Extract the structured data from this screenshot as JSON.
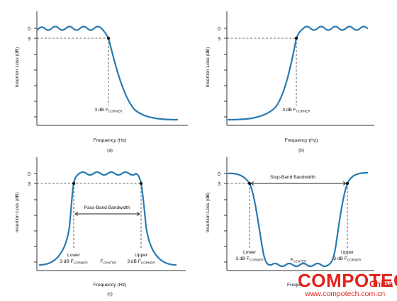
{
  "accent_color": "#2a7ab0",
  "panels": [
    {
      "id": "a",
      "y_axis_label": "Insertion Loss (dB)",
      "y_tick_labels": [
        "0",
        "3"
      ],
      "x_axis_label": "Frequency (Hz)",
      "caption": "(a)",
      "annotations": [
        {
          "prefix": "3 dB F",
          "sub": "CORNER"
        }
      ]
    },
    {
      "id": "b",
      "y_axis_label": "Insertion Loss (dB)",
      "y_tick_labels": [
        "0",
        "3"
      ],
      "x_axis_label": "Frequency (Hz)",
      "caption": "(b)",
      "annotations": [
        {
          "prefix": "3 dB F",
          "sub": "CORNER"
        }
      ]
    },
    {
      "id": "c",
      "y_axis_label": "Insertion Loss (dB)",
      "y_tick_labels": [
        "0",
        "3"
      ],
      "x_axis_label": "Frequency (Hz)",
      "caption": "(c)",
      "bandwidth_label": "Pass-Band Bandwidth",
      "annotations": [
        {
          "line1": "Lower",
          "prefix": "3 dB F",
          "sub": "CORNER"
        },
        {
          "prefix": "F",
          "sub": "CENTER"
        },
        {
          "line1": "Upper",
          "prefix": "3 dB F",
          "sub": "CORNER"
        }
      ]
    },
    {
      "id": "d",
      "y_axis_label": "Insertion Loss (dB)",
      "y_tick_labels": [
        "0",
        "3"
      ],
      "x_axis_label": "Freque",
      "bandwidth_label": "Stop-Band Bandwidth",
      "annotations": [
        {
          "line1": "Lower",
          "prefix": "3 dB F",
          "sub": "CORNER"
        },
        {
          "prefix": "F",
          "sub": "CENTER"
        },
        {
          "line1": "Upper",
          "prefix": "3 dB F",
          "sub": "CORNER"
        }
      ]
    }
  ],
  "watermark": {
    "brand": "COMPOTECH",
    "region": "China",
    "url": "www.compotech.com.cn"
  }
}
